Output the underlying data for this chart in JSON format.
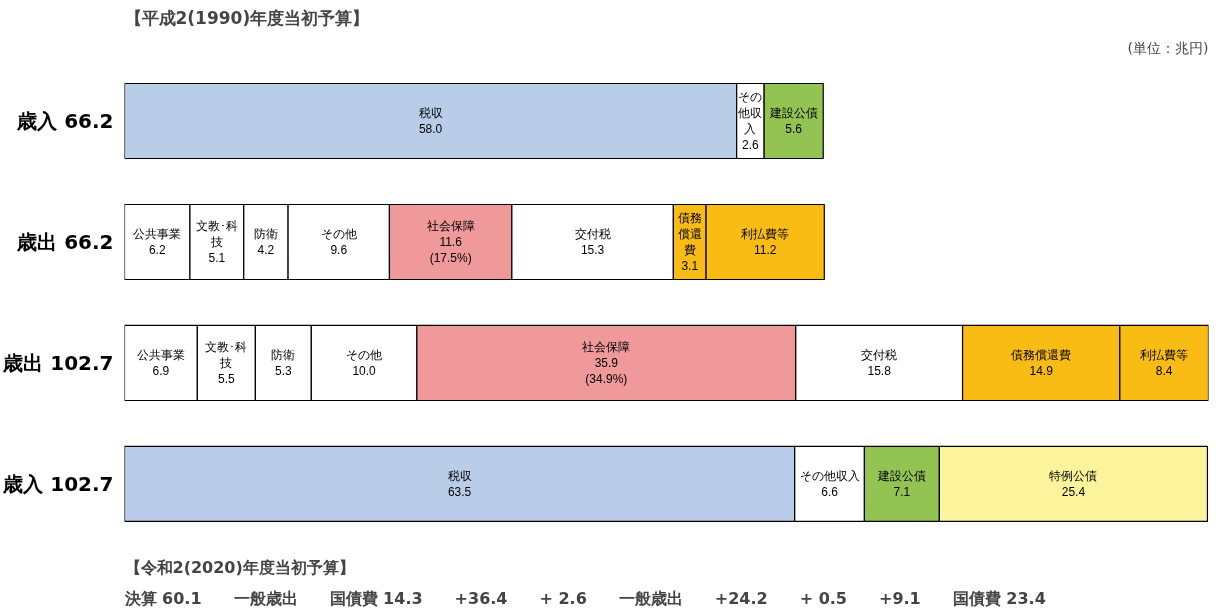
{
  "chart_data": {
    "type": "bar",
    "orientation": "horizontal",
    "stacked": true,
    "title": "【平成2(1990)年度当初予算】",
    "subtitle": "(単位：兆円)",
    "categories": [
      "歳入 66.2",
      "歳出 66.2",
      "歳出 102.7",
      "歳入 102.7"
    ],
    "series": [
      {
        "name": "税収",
        "color": "#b9cde9",
        "values": [
          58.0,
          null,
          null,
          63.5
        ],
        "value_labels": [
          "58.0",
          null,
          null,
          "63.5"
        ]
      },
      {
        "name": "その他収入",
        "color": "#ffffff",
        "values": [
          2.6,
          null,
          null,
          6.6
        ],
        "value_labels": [
          "2.6",
          null,
          null,
          "6.6"
        ]
      },
      {
        "name": "建設公債",
        "color": "#92c353",
        "values": [
          5.6,
          null,
          null,
          7.1
        ],
        "value_labels": [
          "5.6",
          null,
          null,
          "7.1"
        ]
      },
      {
        "name": "特例公債",
        "color": "#fbf49c",
        "values": [
          null,
          null,
          null,
          25.4
        ],
        "value_labels": [
          null,
          null,
          null,
          "25.4"
        ]
      },
      {
        "name": "公共事業",
        "color": "#ffffff",
        "values": [
          null,
          6.2,
          6.9,
          null
        ],
        "value_labels": [
          null,
          "6.2",
          "6.9",
          null
        ]
      },
      {
        "name": "文教･科技",
        "color": "#ffffff",
        "values": [
          null,
          5.1,
          5.5,
          null
        ],
        "value_labels": [
          null,
          "5.1",
          "5.5",
          null
        ]
      },
      {
        "name": "防衛",
        "color": "#ffffff",
        "values": [
          null,
          4.2,
          5.3,
          null
        ],
        "value_labels": [
          null,
          "4.2",
          "5.3",
          null
        ]
      },
      {
        "name": "その他",
        "color": "#ffffff",
        "values": [
          null,
          9.6,
          10.0,
          null
        ],
        "value_labels": [
          null,
          "9.6",
          "10.0",
          null
        ]
      },
      {
        "name": "社会保障",
        "color": "#ef999b",
        "values": [
          null,
          11.6,
          35.9,
          null
        ],
        "value_labels": [
          null,
          "11.6\n(17.5%)",
          "35.9\n(34.9%)",
          null
        ]
      },
      {
        "name": "交付税",
        "color": "#ffffff",
        "values": [
          null,
          15.3,
          15.8,
          null
        ],
        "value_labels": [
          null,
          "15.3",
          "15.8",
          null
        ]
      },
      {
        "name": "債務償還費",
        "color": "#f9bc14",
        "values": [
          null,
          3.1,
          14.9,
          null
        ],
        "value_labels": [
          null,
          "3.1",
          "14.9",
          null
        ]
      },
      {
        "name": "利払費等",
        "color": "#f9bc14",
        "values": [
          null,
          11.2,
          8.4,
          null
        ],
        "value_labels": [
          null,
          "11.2",
          "8.4",
          null
        ]
      }
    ],
    "annotations": [
      "決算 60.1",
      "一般歳出",
      "国債費 14.3",
      "+36.4",
      "+ 2.6",
      "一般歳出",
      "+24.2",
      "+ 0.5",
      "+9.1",
      "国債費 23.4",
      "【令和2(2020)年度当初予算】"
    ]
  }
}
